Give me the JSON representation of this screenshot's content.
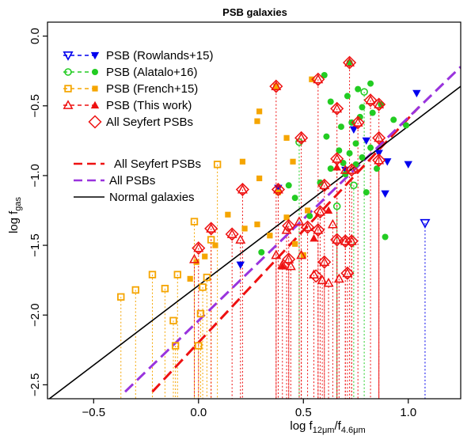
{
  "chart_data": {
    "type": "scatter",
    "title": "PSB galaxies",
    "xlabel": {
      "main": "log f",
      "sub1": "12μm",
      "mid": "/f",
      "sub2": "4.6μm"
    },
    "ylabel": {
      "main": "log f",
      "sub": "gas"
    },
    "xlim": [
      -0.72,
      1.25
    ],
    "ylim": [
      -2.6,
      0.1
    ],
    "xticks": [
      -0.5,
      0.0,
      0.5,
      1.0
    ],
    "xtick_labels": [
      "−0.5",
      "0.0",
      "0.5",
      "1.0"
    ],
    "yticks": [
      -2.5,
      -2.0,
      -1.5,
      -1.0,
      -0.5,
      0.0
    ],
    "ytick_labels": [
      "−2.5",
      "−2.0",
      "−1.5",
      "−1.0",
      "−0.5",
      "0.0"
    ],
    "grid": false,
    "legends": [
      {
        "placement": "top-left",
        "entries": [
          {
            "label": "PSB (Rowlands+15)",
            "color": "#0000ee",
            "symbols": [
              "open-triangle-down",
              "filled-triangle-down"
            ],
            "line": "dashed"
          },
          {
            "label": "PSB (Alatalo+16)",
            "color": "#22cc22",
            "symbols": [
              "open-circle",
              "filled-circle"
            ],
            "line": "dashed"
          },
          {
            "label": "PSB (French+15)",
            "color": "#f5a500",
            "symbols": [
              "open-square",
              "filled-square"
            ],
            "line": "dashed"
          },
          {
            "label": "PSB (This work)",
            "color": "#ee1111",
            "symbols": [
              "open-triangle-up",
              "filled-triangle-up"
            ],
            "line": "dashed"
          },
          {
            "label": "All Seyfert PSBs",
            "color": "#ee1111",
            "symbols": [
              "open-diamond"
            ],
            "line": "none"
          }
        ]
      },
      {
        "placement": "middle-left",
        "entries": [
          {
            "label": "All Seyfert PSBs",
            "color": "#ee1111",
            "line": "dashed"
          },
          {
            "label": "All PSBs",
            "color": "#9933dd",
            "line": "dashed"
          },
          {
            "label": "Normal galaxies",
            "color": "#000000",
            "line": "solid"
          }
        ]
      }
    ],
    "fit_lines": [
      {
        "name": "All Seyfert PSBs",
        "color": "#ee1111",
        "style": "dashed",
        "x": [
          -0.22,
          1.05
        ],
        "y": [
          -2.55,
          -0.51
        ]
      },
      {
        "name": "All PSBs",
        "color": "#9933dd",
        "style": "dashed",
        "x": [
          -0.35,
          1.25
        ],
        "y": [
          -2.55,
          -0.22
        ]
      },
      {
        "name": "Normal galaxies",
        "color": "#000000",
        "style": "solid",
        "x": [
          -0.72,
          1.25
        ],
        "y": [
          -2.61,
          -0.36
        ]
      }
    ],
    "series": [
      {
        "name": "PSB (Rowlands+15)",
        "color": "#0000ee",
        "filled": [
          [
            1.04,
            -0.41
          ],
          [
            0.74,
            -0.67
          ],
          [
            0.8,
            -0.75
          ],
          [
            0.86,
            -0.84
          ],
          [
            0.7,
            -0.96
          ],
          [
            0.9,
            -0.9
          ],
          [
            1.0,
            -0.92
          ],
          [
            0.89,
            -1.13
          ],
          [
            0.38,
            -1.09
          ],
          [
            0.2,
            -1.64
          ]
        ],
        "open_limits": [
          [
            1.08,
            -1.34
          ]
        ]
      },
      {
        "name": "PSB (Alatalo+16)",
        "color": "#22cc22",
        "filled": [
          [
            0.72,
            -0.19
          ],
          [
            0.6,
            -0.28
          ],
          [
            0.82,
            -0.34
          ],
          [
            0.76,
            -0.38
          ],
          [
            0.71,
            -0.43
          ],
          [
            0.63,
            -0.47
          ],
          [
            0.78,
            -0.51
          ],
          [
            0.87,
            -0.49
          ],
          [
            0.83,
            -0.55
          ],
          [
            0.93,
            -0.6
          ],
          [
            0.73,
            -0.62
          ],
          [
            0.77,
            -0.58
          ],
          [
            0.68,
            -0.65
          ],
          [
            0.99,
            -0.64
          ],
          [
            0.61,
            -0.72
          ],
          [
            0.75,
            -0.77
          ],
          [
            0.67,
            -0.82
          ],
          [
            0.82,
            -0.8
          ],
          [
            0.72,
            -0.84
          ],
          [
            0.78,
            -0.87
          ],
          [
            0.69,
            -0.91
          ],
          [
            0.75,
            -0.92
          ],
          [
            0.85,
            -0.95
          ],
          [
            0.63,
            -0.95
          ],
          [
            0.7,
            -0.99
          ],
          [
            0.58,
            -1.05
          ],
          [
            0.8,
            -1.12
          ],
          [
            0.43,
            -1.07
          ],
          [
            0.46,
            -1.16
          ],
          [
            0.53,
            -1.29
          ],
          [
            0.3,
            -1.55
          ],
          [
            0.89,
            -1.44
          ]
        ],
        "open_limits": [
          [
            0.79,
            -0.4
          ],
          [
            0.48,
            -0.76
          ],
          [
            0.74,
            -1.07
          ],
          [
            0.66,
            -1.22
          ]
        ]
      },
      {
        "name": "PSB (French+15)",
        "color": "#f5a500",
        "filled": [
          [
            0.54,
            -0.31
          ],
          [
            0.37,
            -0.36
          ],
          [
            0.29,
            -0.54
          ],
          [
            0.28,
            -0.61
          ],
          [
            0.21,
            -0.9
          ],
          [
            0.42,
            -0.73
          ],
          [
            0.29,
            -1.02
          ],
          [
            0.45,
            -0.9
          ],
          [
            0.38,
            -1.12
          ],
          [
            0.42,
            -1.3
          ],
          [
            0.52,
            -1.25
          ],
          [
            0.28,
            -1.35
          ],
          [
            0.14,
            -1.28
          ],
          [
            0.22,
            -1.38
          ],
          [
            0.34,
            -1.43
          ],
          [
            0.08,
            -1.5
          ],
          [
            0.46,
            -1.49
          ],
          [
            0.5,
            -1.57
          ],
          [
            0.03,
            -1.58
          ],
          [
            -0.01,
            -1.62
          ],
          [
            -0.04,
            -1.74
          ]
        ],
        "open_limits": [
          [
            0.09,
            -0.92
          ],
          [
            -0.02,
            -1.33
          ],
          [
            0.06,
            -1.46
          ],
          [
            0.04,
            -1.73
          ],
          [
            -0.1,
            -1.71
          ],
          [
            -0.16,
            -1.81
          ],
          [
            -0.3,
            -1.82
          ],
          [
            -0.22,
            -1.71
          ],
          [
            -0.37,
            -1.87
          ],
          [
            -0.12,
            -2.04
          ],
          [
            -0.11,
            -2.22
          ],
          [
            0.0,
            -2.22
          ],
          [
            0.01,
            -1.99
          ],
          [
            0.02,
            -1.8
          ]
        ]
      },
      {
        "name": "PSB (This work)",
        "color": "#ee1111",
        "filled": [
          [
            0.4,
            -1.65
          ],
          [
            0.55,
            -1.45
          ],
          [
            0.62,
            -1.25
          ],
          [
            0.66,
            -0.94
          ]
        ],
        "open_limits": [
          [
            0.72,
            -0.19
          ],
          [
            0.57,
            -0.31
          ],
          [
            0.37,
            -0.36
          ],
          [
            0.66,
            -0.52
          ],
          [
            0.82,
            -0.46
          ],
          [
            0.86,
            -0.49
          ],
          [
            0.76,
            -0.62
          ],
          [
            0.86,
            -0.73
          ],
          [
            0.49,
            -0.73
          ],
          [
            0.66,
            -0.88
          ],
          [
            0.73,
            -0.96
          ],
          [
            0.86,
            -0.89
          ],
          [
            0.7,
            -0.96
          ],
          [
            0.6,
            -1.07
          ],
          [
            0.21,
            -1.1
          ],
          [
            0.38,
            -1.1
          ],
          [
            0.58,
            -1.26
          ],
          [
            0.43,
            -1.36
          ],
          [
            0.52,
            -1.37
          ],
          [
            0.57,
            -1.39
          ],
          [
            0.42,
            -1.39
          ],
          [
            0.48,
            -1.33
          ],
          [
            0.06,
            -1.38
          ],
          [
            0.16,
            -1.42
          ],
          [
            0.2,
            -1.46
          ],
          [
            0.66,
            -1.46
          ],
          [
            0.7,
            -1.47
          ],
          [
            0.73,
            -1.47
          ],
          [
            0.37,
            -1.57
          ],
          [
            0.43,
            -1.6
          ],
          [
            0.44,
            -1.65
          ],
          [
            0.4,
            -1.64
          ],
          [
            0.49,
            -1.57
          ],
          [
            -0.02,
            -1.6
          ],
          [
            0.0,
            -1.52
          ],
          [
            0.6,
            -1.62
          ],
          [
            0.55,
            -1.71
          ],
          [
            0.59,
            -1.75
          ],
          [
            0.62,
            -1.77
          ],
          [
            0.67,
            -1.74
          ],
          [
            0.71,
            -1.7
          ],
          [
            0.64,
            -1.35
          ]
        ]
      },
      {
        "name": "All Seyfert PSBs",
        "color": "#ee1111",
        "diamonds": [
          [
            0.72,
            -0.19
          ],
          [
            0.57,
            -0.31
          ],
          [
            0.37,
            -0.36
          ],
          [
            0.66,
            -0.52
          ],
          [
            0.82,
            -0.46
          ],
          [
            0.86,
            -0.49
          ],
          [
            0.76,
            -0.62
          ],
          [
            0.86,
            -0.73
          ],
          [
            0.49,
            -0.73
          ],
          [
            0.66,
            -0.88
          ],
          [
            0.73,
            -0.96
          ],
          [
            0.86,
            -0.89
          ],
          [
            0.6,
            -1.07
          ],
          [
            0.21,
            -1.1
          ],
          [
            0.38,
            -1.1
          ],
          [
            0.58,
            -1.26
          ],
          [
            0.43,
            -1.36
          ],
          [
            0.52,
            -1.37
          ],
          [
            0.57,
            -1.39
          ],
          [
            0.06,
            -1.38
          ],
          [
            0.16,
            -1.42
          ],
          [
            0.66,
            -1.46
          ],
          [
            0.7,
            -1.47
          ],
          [
            0.73,
            -1.47
          ],
          [
            0.43,
            -1.6
          ],
          [
            0.0,
            -1.52
          ],
          [
            0.6,
            -1.62
          ],
          [
            0.71,
            -1.7
          ],
          [
            0.56,
            -1.72
          ]
        ]
      }
    ]
  }
}
